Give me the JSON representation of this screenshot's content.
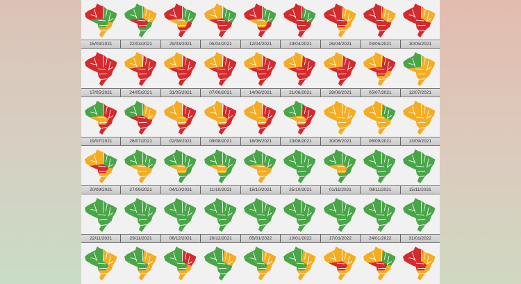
{
  "colors": {
    "r": "#d42a2e",
    "y": "#f4ad22",
    "g": "#49a648"
  },
  "rows": [
    {
      "dates": [],
      "maps": [
        [
          "r",
          "g",
          "g",
          "y"
        ],
        [
          "g",
          "y",
          "r",
          "g"
        ],
        [
          "r",
          "g",
          "y",
          "r"
        ],
        [
          "y",
          "g",
          "r",
          "r"
        ],
        [
          "r",
          "g",
          "y",
          "r"
        ],
        [
          "r",
          "g",
          "r",
          "r"
        ],
        [
          "r",
          "y",
          "r",
          "y"
        ],
        [
          "r",
          "y",
          "r",
          "r"
        ],
        [
          "r",
          "y",
          "r",
          "r"
        ]
      ]
    },
    {
      "dates": [
        "15/03/2021",
        "22/03/2021",
        "29/03/2021",
        "05/04/2021",
        "12/04/2021",
        "19/04/2021",
        "26/04/2021",
        "03/05/2021",
        "10/05/2021"
      ],
      "maps": [
        [
          "r",
          "r",
          "r",
          "r"
        ],
        [
          "y",
          "r",
          "r",
          "r"
        ],
        [
          "y",
          "r",
          "r",
          "r"
        ],
        [
          "y",
          "r",
          "r",
          "r"
        ],
        [
          "y",
          "r",
          "r",
          "r"
        ],
        [
          "y",
          "r",
          "r",
          "r"
        ],
        [
          "y",
          "r",
          "r",
          "r"
        ],
        [
          "y",
          "r",
          "r",
          "y"
        ],
        [
          "g",
          "y",
          "y",
          "y"
        ]
      ]
    },
    {
      "dates": [
        "17/05/2021",
        "24/05/2021",
        "31/05/2021",
        "07/06/2021",
        "14/06/2021",
        "21/06/2021",
        "28/06/2021",
        "05/07/2021",
        "12/07/2021"
      ],
      "maps": [
        [
          "g",
          "r",
          "y",
          "r"
        ],
        [
          "g",
          "y",
          "r",
          "r"
        ],
        [
          "y",
          "r",
          "y",
          "r"
        ],
        [
          "y",
          "r",
          "y",
          "r"
        ],
        [
          "y",
          "r",
          "y",
          "r"
        ],
        [
          "g",
          "r",
          "y",
          "r"
        ],
        [
          "y",
          "y",
          "y",
          "y"
        ],
        [
          "y",
          "g",
          "y",
          "y"
        ],
        [
          "y",
          "y",
          "y",
          "y"
        ]
      ]
    },
    {
      "dates": [
        "19/07/2021",
        "26/07/2021",
        "02/08/2021",
        "09/08/2021",
        "16/08/2021",
        "23/08/2021",
        "30/08/2021",
        "06/09/2021",
        "13/09/2021"
      ],
      "maps": [
        [
          "y",
          "g",
          "r",
          "y"
        ],
        [
          "g",
          "g",
          "y",
          "y"
        ],
        [
          "g",
          "g",
          "y",
          "g"
        ],
        [
          "g",
          "g",
          "y",
          "g"
        ],
        [
          "g",
          "g",
          "y",
          "y"
        ],
        [
          "g",
          "g",
          "g",
          "g"
        ],
        [
          "g",
          "g",
          "y",
          "g"
        ],
        [
          "g",
          "g",
          "g",
          "g"
        ],
        [
          "g",
          "g",
          "g",
          "g"
        ]
      ]
    },
    {
      "dates": [
        "20/09/2021",
        "27/09/2021",
        "04/10/2021",
        "11/10/2021",
        "18/10/2021",
        "25/10/2021",
        "01/11/2021",
        "08/11/2021",
        "15/11/2021"
      ],
      "maps": [
        [
          "g",
          "g",
          "g",
          "g"
        ],
        [
          "g",
          "g",
          "g",
          "g"
        ],
        [
          "g",
          "g",
          "g",
          "g"
        ],
        [
          "g",
          "g",
          "g",
          "g"
        ],
        [
          "g",
          "g",
          "g",
          "g"
        ],
        [
          "g",
          "g",
          "g",
          "g"
        ],
        [
          "g",
          "g",
          "g",
          "g"
        ],
        [
          "g",
          "g",
          "g",
          "g"
        ],
        [
          "g",
          "g",
          "g",
          "g"
        ]
      ]
    },
    {
      "dates": [
        "22/11/2021",
        "29/11/2021",
        "06/12/2021",
        "20/12/2021",
        "05/01/2022",
        "10/01/2022",
        "17/01/2022",
        "24/01/2022",
        "31/01/2022"
      ],
      "maps": [
        [
          "g",
          "y",
          "g",
          "y"
        ],
        [
          "g",
          "y",
          "g",
          "y"
        ],
        [
          "g",
          "r",
          "g",
          "y"
        ],
        [
          "g",
          "y",
          "g",
          "g"
        ],
        [
          "g",
          "y",
          "g",
          "y"
        ],
        [
          "g",
          "y",
          "g",
          "y"
        ],
        [
          "y",
          "y",
          "r",
          "y"
        ],
        [
          "y",
          "g",
          "r",
          "y"
        ],
        [
          "r",
          "y",
          "r",
          "y"
        ]
      ]
    }
  ]
}
